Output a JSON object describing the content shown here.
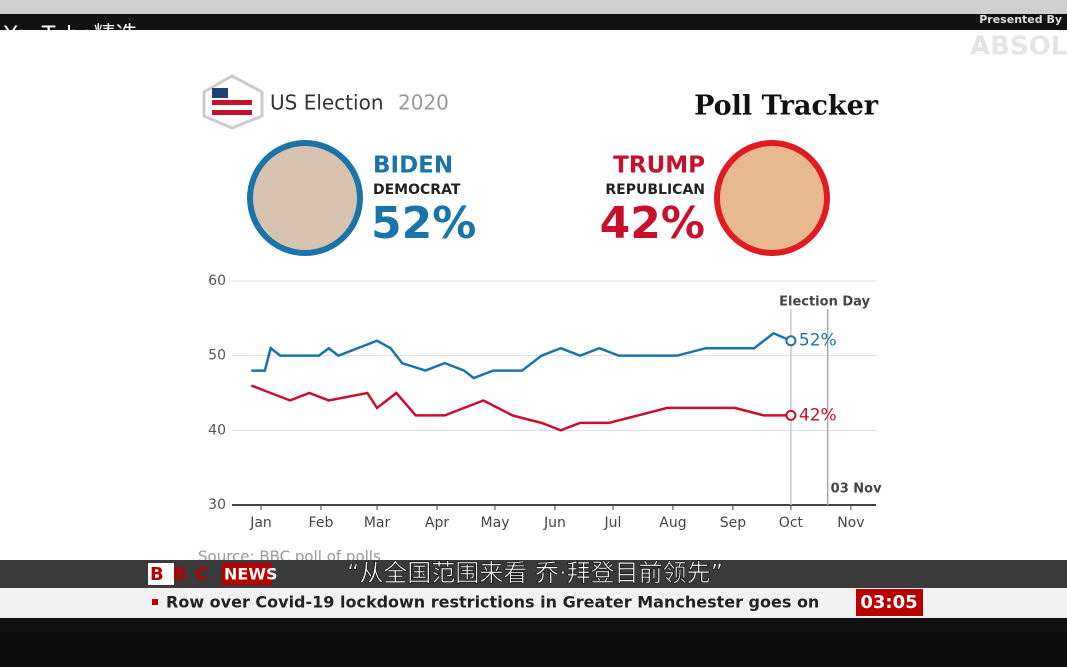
{
  "overlay": {
    "channel": "YouTube精选",
    "sponsor": "Presented By",
    "brand": "ABSOLUT"
  },
  "header": {
    "brand": "US Election",
    "year": "2020",
    "title": "Poll Tracker"
  },
  "candidates": [
    {
      "name": "BIDEN",
      "party": "DEMOCRAT",
      "share": "52%"
    },
    {
      "name": "TRUMP",
      "party": "REPUBLICAN",
      "share": "42%"
    }
  ],
  "chart_data": {
    "type": "line",
    "ylim": [
      30,
      60
    ],
    "yticks": [
      30,
      40,
      50,
      60
    ],
    "grid": true,
    "xlim": [
      0,
      330
    ],
    "xticks": [
      {
        "value": 15,
        "label": "Jan"
      },
      {
        "value": 46,
        "label": "Feb"
      },
      {
        "value": 75,
        "label": "Mar"
      },
      {
        "value": 106,
        "label": "Apr"
      },
      {
        "value": 136,
        "label": "May"
      },
      {
        "value": 167,
        "label": "Jun"
      },
      {
        "value": 197,
        "label": "Jul"
      },
      {
        "value": 228,
        "label": "Aug"
      },
      {
        "value": 259,
        "label": "Sep"
      },
      {
        "value": 289,
        "label": "Oct"
      },
      {
        "value": 320,
        "label": "Nov"
      }
    ],
    "marker": {
      "x": 308,
      "title": "Election Day",
      "label": "03 Nov"
    },
    "source": "Source: BBC poll of polls",
    "series": [
      {
        "color": "#1a74a8",
        "end_label": "52%",
        "x": [
          10,
          17,
          20,
          25,
          45,
          50,
          55,
          75,
          82,
          88,
          100,
          110,
          120,
          125,
          135,
          150,
          160,
          170,
          180,
          190,
          200,
          215,
          230,
          245,
          260,
          270,
          280,
          289
        ],
        "values": [
          48,
          48,
          51,
          50,
          50,
          51,
          50,
          52,
          51,
          49,
          48,
          49,
          48,
          47,
          48,
          48,
          50,
          51,
          50,
          51,
          50,
          50,
          50,
          51,
          51,
          51,
          53,
          52
        ]
      },
      {
        "color": "#c8102e",
        "end_label": "42%",
        "x": [
          10,
          20,
          30,
          40,
          50,
          70,
          75,
          85,
          95,
          110,
          130,
          145,
          160,
          170,
          180,
          195,
          210,
          225,
          240,
          260,
          275,
          289
        ],
        "values": [
          46,
          45,
          44,
          45,
          44,
          45,
          43,
          45,
          42,
          42,
          44,
          42,
          41,
          40,
          41,
          41,
          42,
          43,
          43,
          43,
          42,
          42
        ]
      }
    ]
  },
  "ticker": {
    "logo": "BBC",
    "channel": "NEWS",
    "subtitle": "“从全国范围来看 乔·拜登目前领先”",
    "headline": "Row over Covid-19 lockdown restrictions in Greater Manchester goes on",
    "clock": "03:05"
  }
}
